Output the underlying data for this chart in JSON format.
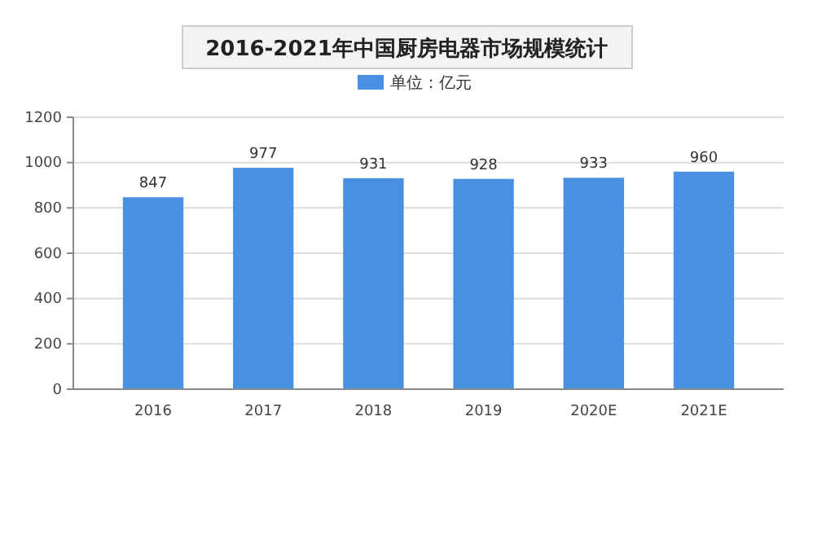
{
  "chart_data": {
    "type": "bar",
    "title": "2016-2021年中国厨房电器市场规模统计",
    "categories": [
      "2016",
      "2017",
      "2018",
      "2019",
      "2020E",
      "2021E"
    ],
    "series": [
      {
        "name": "单位：亿元",
        "color": "#4a90e2",
        "values": [
          847,
          977,
          931,
          928,
          933,
          960
        ]
      }
    ],
    "ylim": [
      0,
      1200
    ],
    "yticks": [
      0,
      200,
      400,
      600,
      800,
      1000,
      1200
    ],
    "grid": "y",
    "legend": "top",
    "data_labels": true
  }
}
